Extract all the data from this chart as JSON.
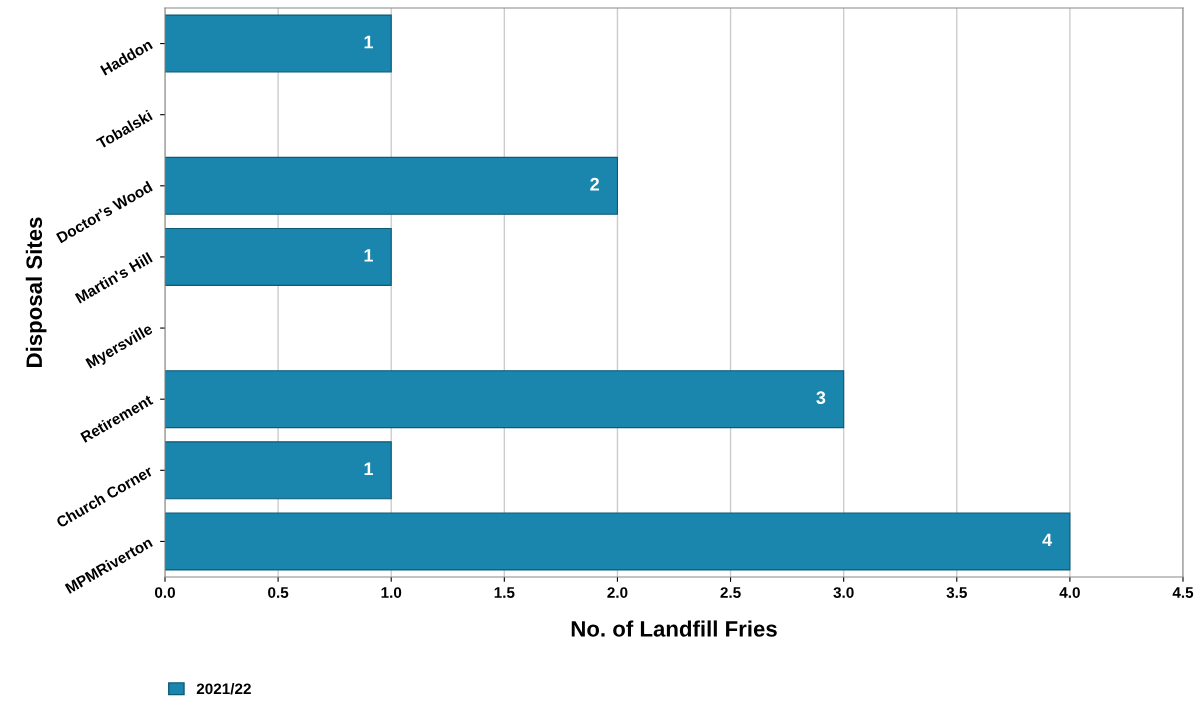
{
  "chart_data": {
    "type": "bar",
    "orientation": "horizontal",
    "categories": [
      "Haddon",
      "Tobalski",
      "Doctor's Wood",
      "Martin's Hill",
      "Myersville",
      "Retirement",
      "Church Corner",
      "MPMRiverton"
    ],
    "series": [
      {
        "name": "2021/22",
        "color": "#1a86ad",
        "values": [
          1,
          null,
          2,
          1,
          null,
          3,
          1,
          4
        ]
      }
    ],
    "value_labels": [
      "1",
      null,
      "2",
      "1",
      null,
      "3",
      "1",
      "4"
    ],
    "xlabel": "No. of Landfill Fries",
    "ylabel": "Disposal Sites",
    "xlim": [
      0,
      4.5
    ],
    "xticks": [
      {
        "value": 0,
        "label": "0.0"
      },
      0.5,
      {
        "value": 1,
        "label": "1.0"
      },
      1.5,
      {
        "value": 2,
        "label": "2.0"
      },
      2.5,
      {
        "value": 3,
        "label": "3.0"
      },
      3.5,
      {
        "value": 4,
        "label": "4.0"
      },
      4.5
    ],
    "grid": "x",
    "legend": "bottom left"
  }
}
